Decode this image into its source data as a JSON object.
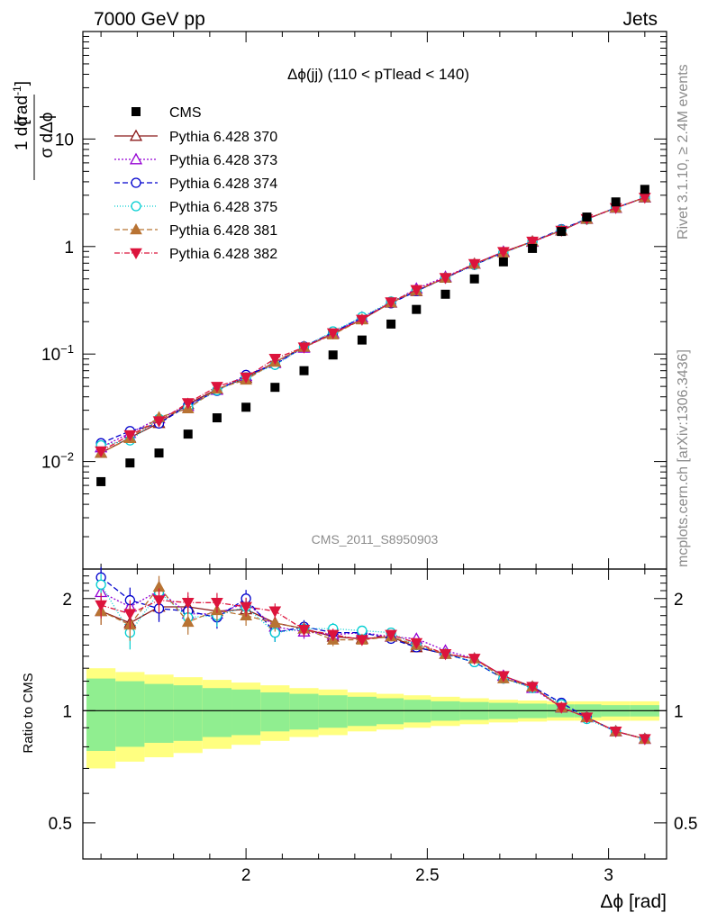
{
  "header": {
    "left": "7000 GeV pp",
    "right": "Jets"
  },
  "side_labels": {
    "top": "Rivet 3.1.10, ≥ 2.4M events",
    "bottom": "mcplots.cern.ch [arXiv:1306.3436]"
  },
  "main": {
    "title": "Δϕ(jj) (110 < pTlead <  140)",
    "watermark": "CMS_2011_S8950903",
    "ylabel_num": "1 dσ",
    "ylabel_den": "σ dΔϕ",
    "ylabel_unit": "[rad",
    "ylabel_unit_exp": "-1",
    "ylabel_unit_close": "]"
  },
  "ratio": {
    "ylabel": "Ratio to CMS"
  },
  "xaxis": {
    "label": "Δϕ [rad]"
  },
  "chart_data": {
    "type": "line",
    "x_bins": [
      1.6,
      1.68,
      1.76,
      1.84,
      1.92,
      2.0,
      2.08,
      2.16,
      2.24,
      2.32,
      2.4,
      2.47,
      2.55,
      2.63,
      2.71,
      2.79,
      2.87,
      2.94,
      3.02,
      3.1
    ],
    "xlim": [
      1.55,
      3.16
    ],
    "main_ylim": [
      0.001,
      100
    ],
    "main_yscale": "log",
    "main_yticks": [
      {
        "v": 0.01,
        "label": "10",
        "exp": "−2"
      },
      {
        "v": 0.1,
        "label": "10",
        "exp": "−1"
      },
      {
        "v": 1,
        "label": "1",
        "exp": ""
      },
      {
        "v": 10,
        "label": "10",
        "exp": ""
      }
    ],
    "ratio_ylim": [
      0.4,
      2.4
    ],
    "ratio_yscale": "log",
    "ratio_yticks": [
      0.5,
      1,
      2
    ],
    "xticks": [
      2,
      2.5,
      3
    ],
    "xtick_labels": [
      "2",
      "2.5",
      "3"
    ],
    "data": {
      "name": "CMS",
      "values": [
        0.0065,
        0.0097,
        0.012,
        0.018,
        0.0255,
        0.032,
        0.049,
        0.07,
        0.098,
        0.135,
        0.19,
        0.26,
        0.36,
        0.5,
        0.72,
        0.96,
        1.38,
        1.88,
        2.6,
        3.4
      ],
      "color": "#000000"
    },
    "band_stat": [
      0.22,
      0.2,
      0.18,
      0.17,
      0.15,
      0.14,
      0.12,
      0.11,
      0.1,
      0.09,
      0.08,
      0.07,
      0.06,
      0.055,
      0.05,
      0.045,
      0.04,
      0.04,
      0.035,
      0.035
    ],
    "band_total": [
      0.3,
      0.27,
      0.25,
      0.23,
      0.21,
      0.19,
      0.17,
      0.15,
      0.14,
      0.12,
      0.11,
      0.1,
      0.09,
      0.08,
      0.07,
      0.065,
      0.06,
      0.06,
      0.06,
      0.06
    ],
    "band_colors": {
      "stat": "#90ee90",
      "total": "#ffff80"
    },
    "series": [
      {
        "name": "Pythia 6.428 370",
        "color": "#8b1a1a",
        "marker": "triangle-open",
        "dash": "",
        "ratio": [
          1.85,
          1.72,
          1.9,
          1.9,
          1.85,
          1.87,
          1.72,
          1.66,
          1.58,
          1.56,
          1.58,
          1.48,
          1.42,
          1.38,
          1.24,
          1.16,
          1.02,
          0.96,
          0.88,
          0.84
        ],
        "err": [
          0.15,
          0.16,
          0.15,
          0.13,
          0.12,
          0.11,
          0.09,
          0.07,
          0.06,
          0.05,
          0.04,
          0.04,
          0.03,
          0.03,
          0.02,
          0.02,
          0.02,
          0.02,
          0.02,
          0.02
        ]
      },
      {
        "name": "Pythia 6.428 373",
        "color": "#9400d3",
        "marker": "triangle-open",
        "dash": "2,2",
        "ratio": [
          2.08,
          1.9,
          2.1,
          1.82,
          1.82,
          1.95,
          1.68,
          1.63,
          1.6,
          1.62,
          1.58,
          1.56,
          1.45,
          1.38,
          1.24,
          1.15,
          1.02,
          0.96,
          0.88,
          0.84
        ],
        "err": [
          0.15,
          0.16,
          0.15,
          0.13,
          0.12,
          0.11,
          0.09,
          0.07,
          0.06,
          0.05,
          0.04,
          0.04,
          0.03,
          0.03,
          0.02,
          0.02,
          0.02,
          0.02,
          0.02,
          0.02
        ]
      },
      {
        "name": "Pythia 6.428 374",
        "color": "#0000cd",
        "marker": "circle-open",
        "dash": "6,3",
        "ratio": [
          2.28,
          1.98,
          1.88,
          1.85,
          1.78,
          2.0,
          1.62,
          1.68,
          1.62,
          1.62,
          1.56,
          1.48,
          1.42,
          1.35,
          1.22,
          1.16,
          1.05,
          0.96,
          0.88,
          0.84
        ],
        "err": [
          0.15,
          0.16,
          0.15,
          0.13,
          0.12,
          0.11,
          0.09,
          0.07,
          0.06,
          0.05,
          0.04,
          0.04,
          0.03,
          0.03,
          0.02,
          0.02,
          0.02,
          0.02,
          0.02,
          0.02
        ]
      },
      {
        "name": "Pythia 6.428 375",
        "color": "#00ced1",
        "marker": "circle-open",
        "dash": "1,2",
        "ratio": [
          2.18,
          1.62,
          2.08,
          1.78,
          1.8,
          1.9,
          1.62,
          1.66,
          1.66,
          1.64,
          1.62,
          1.5,
          1.42,
          1.35,
          1.22,
          1.15,
          1.04,
          0.95,
          0.88,
          0.84
        ],
        "err": [
          0.15,
          0.16,
          0.15,
          0.13,
          0.12,
          0.11,
          0.09,
          0.07,
          0.06,
          0.05,
          0.04,
          0.04,
          0.03,
          0.03,
          0.02,
          0.02,
          0.02,
          0.02,
          0.02,
          0.02
        ]
      },
      {
        "name": "Pythia 6.428 381",
        "color": "#b87333",
        "marker": "triangle-filled",
        "dash": "6,3",
        "ratio": [
          1.85,
          1.7,
          2.15,
          1.73,
          1.86,
          1.8,
          1.72,
          1.66,
          1.55,
          1.55,
          1.58,
          1.5,
          1.42,
          1.38,
          1.22,
          1.16,
          1.02,
          0.96,
          0.88,
          0.84
        ],
        "err": [
          0.15,
          0.16,
          0.15,
          0.13,
          0.12,
          0.11,
          0.09,
          0.07,
          0.06,
          0.05,
          0.04,
          0.04,
          0.03,
          0.03,
          0.02,
          0.02,
          0.02,
          0.02,
          0.02,
          0.02
        ]
      },
      {
        "name": "Pythia 6.428 382",
        "color": "#dc143c",
        "marker": "triangledown-filled",
        "dash": "6,2,1,2",
        "ratio": [
          1.92,
          1.82,
          1.98,
          1.95,
          1.95,
          1.9,
          1.85,
          1.65,
          1.6,
          1.55,
          1.6,
          1.52,
          1.42,
          1.38,
          1.24,
          1.16,
          1.02,
          0.96,
          0.88,
          0.84
        ],
        "err": [
          0.15,
          0.16,
          0.15,
          0.13,
          0.12,
          0.11,
          0.09,
          0.07,
          0.06,
          0.05,
          0.04,
          0.04,
          0.03,
          0.03,
          0.02,
          0.02,
          0.02,
          0.02,
          0.02,
          0.02
        ]
      }
    ]
  }
}
